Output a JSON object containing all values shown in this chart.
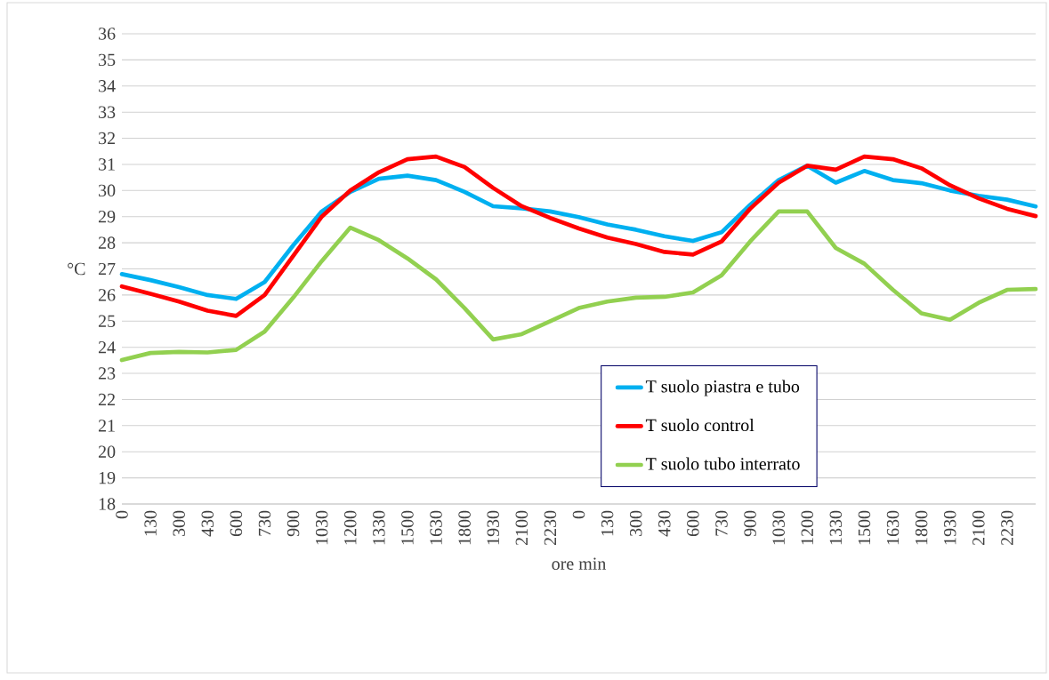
{
  "chart_data": {
    "type": "line",
    "xlabel": "ore min",
    "ylabel": "°C",
    "grid": "y",
    "legend": "bottom right",
    "ylim": [
      18,
      36
    ],
    "yticks": [
      18,
      19,
      20,
      21,
      22,
      23,
      24,
      25,
      26,
      27,
      28,
      29,
      30,
      31,
      32,
      33,
      34,
      35,
      36
    ],
    "categories": [
      "0",
      "130",
      "300",
      "430",
      "600",
      "730",
      "900",
      "1030",
      "1200",
      "1330",
      "1500",
      "1630",
      "1800",
      "1930",
      "2100",
      "2230",
      "0",
      "130",
      "300",
      "430",
      "600",
      "730",
      "900",
      "1030",
      "1200",
      "1330",
      "1500",
      "1630",
      "1800",
      "1930",
      "2100",
      "2230",
      null
    ],
    "series": [
      {
        "name": "T suolo  piastra e tubo",
        "color": "#00b0f0",
        "values": [
          26.8,
          26.57,
          26.3,
          26.0,
          25.85,
          26.5,
          27.9,
          29.2,
          29.95,
          30.45,
          30.57,
          30.4,
          29.95,
          29.4,
          29.32,
          29.2,
          28.98,
          28.7,
          28.5,
          28.25,
          28.07,
          28.4,
          29.45,
          30.4,
          30.95,
          30.3,
          30.75,
          30.4,
          30.28,
          30.0,
          29.8,
          29.65,
          29.39
        ]
      },
      {
        "name": "T suolo control",
        "color": "#ff0000",
        "values": [
          26.33,
          26.05,
          25.75,
          25.4,
          25.2,
          26.0,
          27.5,
          29.0,
          30.0,
          30.7,
          31.2,
          31.3,
          30.9,
          30.1,
          29.4,
          28.95,
          28.55,
          28.2,
          27.95,
          27.65,
          27.55,
          28.05,
          29.3,
          30.3,
          30.95,
          30.8,
          31.3,
          31.2,
          30.85,
          30.2,
          29.7,
          29.3,
          29.02
        ]
      },
      {
        "name": "T suolo tubo interrato",
        "color": "#92d050",
        "values": [
          23.51,
          23.78,
          23.82,
          23.8,
          23.9,
          24.6,
          25.9,
          27.3,
          28.58,
          28.1,
          27.4,
          26.6,
          25.5,
          24.3,
          24.5,
          25.0,
          25.5,
          25.75,
          25.9,
          25.93,
          26.1,
          26.75,
          28.05,
          29.2,
          29.2,
          27.8,
          27.2,
          26.2,
          25.3,
          25.05,
          25.7,
          26.2,
          26.23
        ]
      }
    ]
  }
}
